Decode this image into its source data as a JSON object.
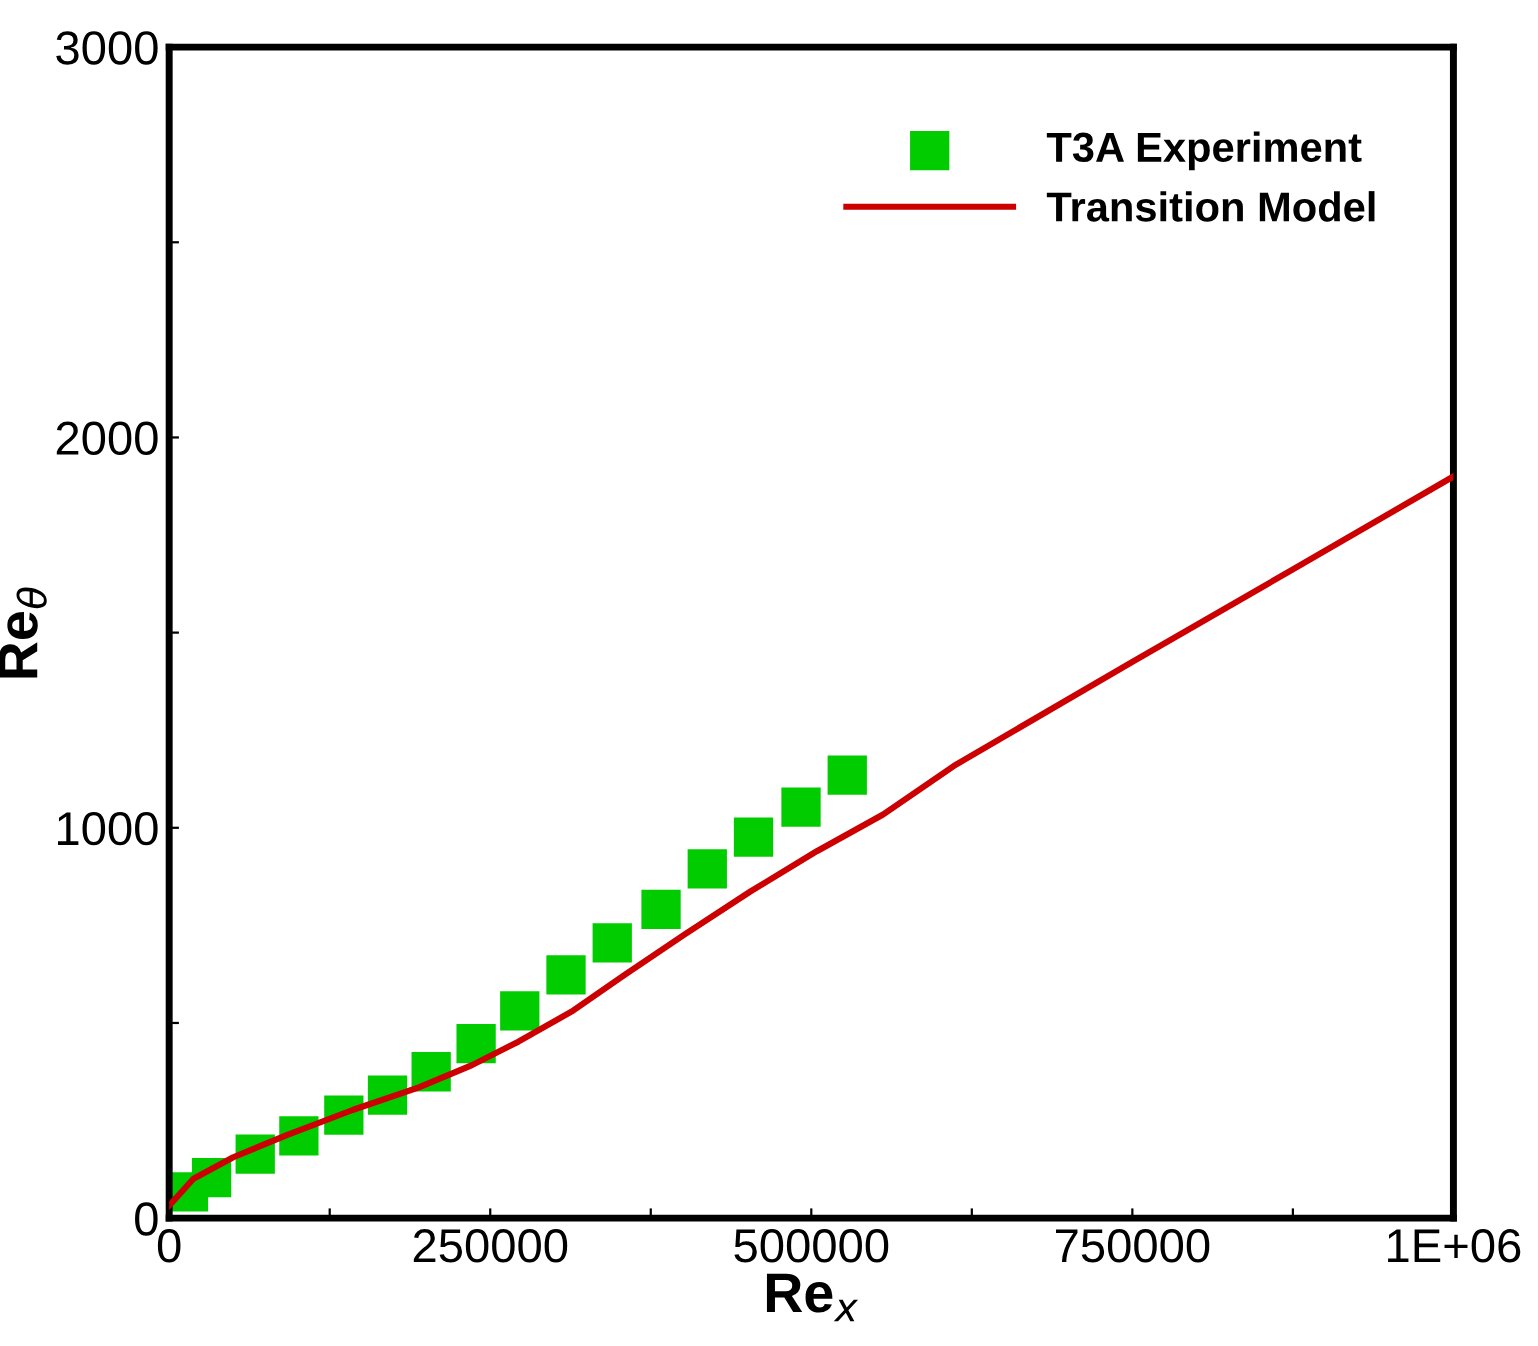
{
  "chart_data": {
    "type": "line",
    "xlabel": "Re$_{x}$",
    "ylabel": "Re$_{θ}$",
    "xlim": [
      0,
      1000000
    ],
    "ylim": [
      0,
      3000
    ],
    "xticks": [
      0,
      {
        "value": 125000,
        "label": null
      },
      250000,
      {
        "value": 375000,
        "label": null
      },
      500000,
      {
        "value": 625000,
        "label": null
      },
      750000,
      {
        "value": 875000,
        "label": null
      },
      {
        "value": 1000000,
        "label": "1E+06"
      }
    ],
    "yticks": [
      0,
      {
        "value": 500,
        "label": null
      },
      1000,
      {
        "value": 1500,
        "label": null
      },
      2000,
      {
        "value": 2500,
        "label": null
      },
      3000
    ],
    "grid": false,
    "legend": "top right",
    "series": [
      {
        "name": "T3A Experiment",
        "type": "scatter",
        "marker": "square",
        "color": "#00cc00",
        "x": [
          15000,
          33000,
          67000,
          101000,
          136000,
          170000,
          204000,
          239000,
          273000,
          309000,
          345000,
          383000,
          419000,
          455000,
          492000,
          528000
        ],
        "values": [
          67,
          104,
          164,
          211,
          264,
          315,
          375,
          447,
          531,
          623,
          705,
          791,
          895,
          976,
          1053,
          1135
        ]
      },
      {
        "name": "Transition Model",
        "marker": "none",
        "line_style": "solid",
        "color": "#cc0000",
        "x": [
          0,
          18900,
          49900,
          91100,
          142800,
          194400,
          235800,
          271900,
          313200,
          354500,
          401000,
          452700,
          504300,
          555900,
          612700,
          750000,
          875000,
          1000000
        ],
        "values": [
          32,
          101,
          156,
          212,
          277,
          335,
          392,
          452,
          529,
          623,
          726,
          837,
          940,
          1034,
          1162,
          1425,
          1662,
          1900
        ]
      }
    ]
  }
}
